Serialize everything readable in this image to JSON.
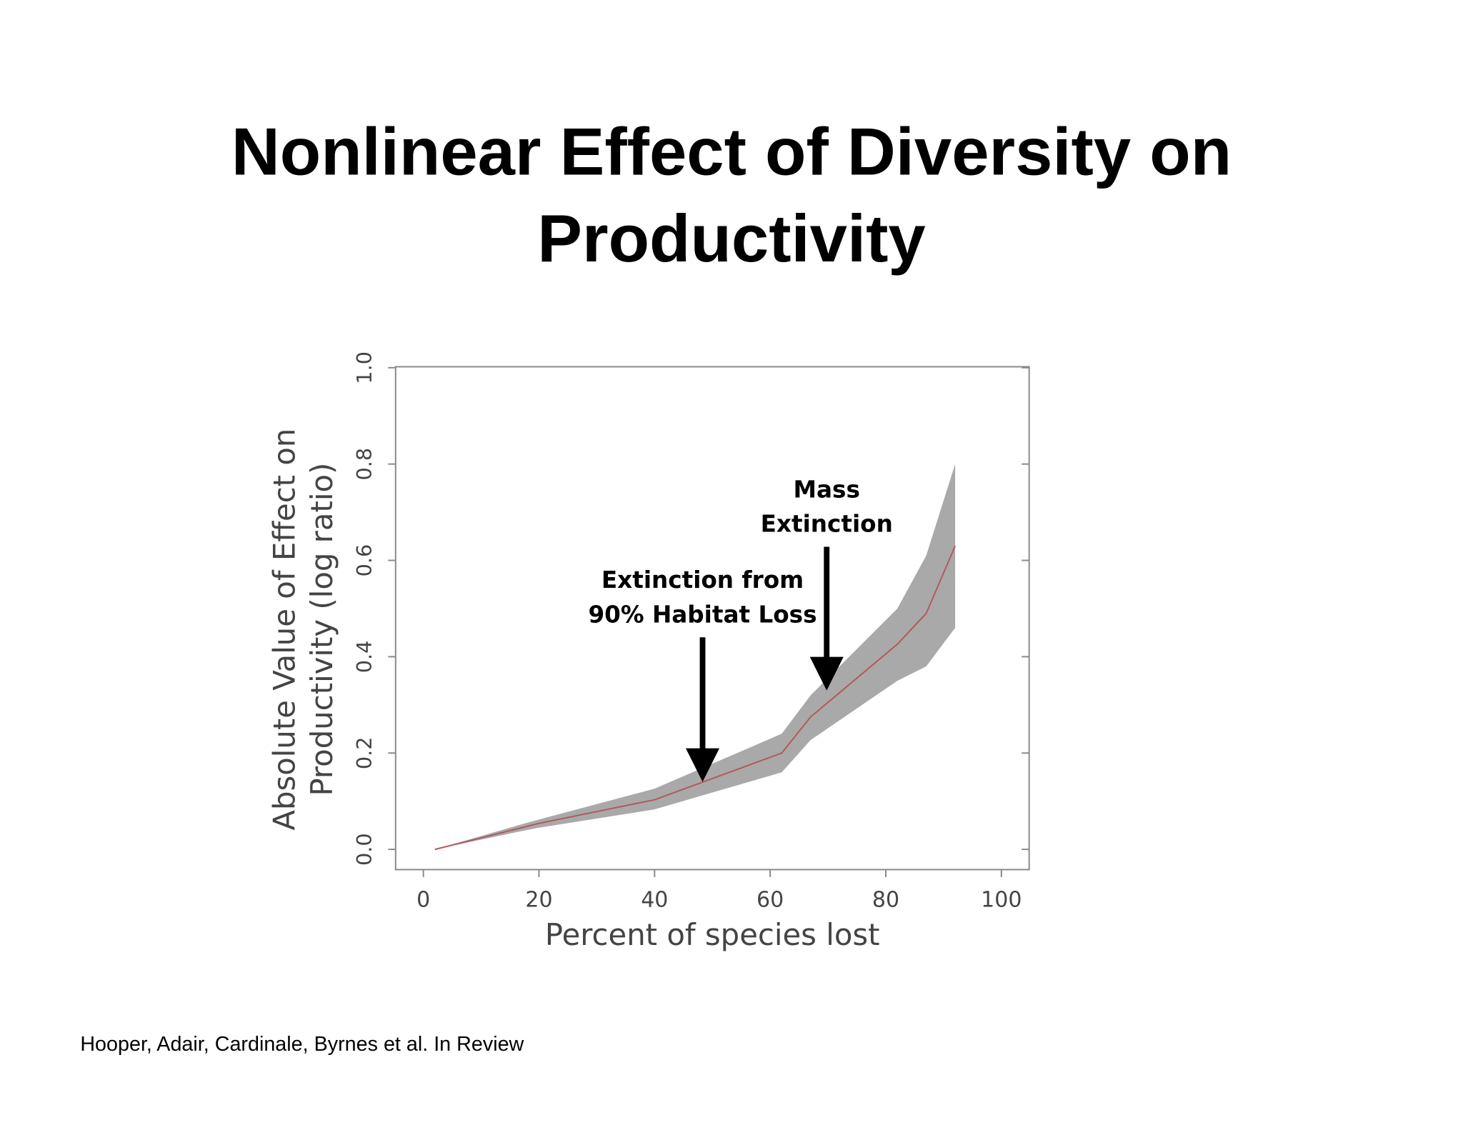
{
  "title": [
    "Nonlinear Effect of Diversity on",
    "Productivity"
  ],
  "chart_data": {
    "type": "line",
    "xlabel": "Percent of species lost",
    "ylabel": [
      "Absolute Value of Effect on",
      "Productivity (log ratio)"
    ],
    "x": [
      2,
      17,
      20,
      40,
      62,
      67,
      82,
      87,
      92
    ],
    "values": [
      0,
      0.045,
      0.054,
      0.103,
      0.2,
      0.275,
      0.426,
      0.49,
      0.63
    ],
    "color": "#b05a5a",
    "band": {
      "lower": [
        0,
        0.038,
        0.045,
        0.083,
        0.16,
        0.227,
        0.35,
        0.38,
        0.46
      ],
      "upper": [
        0,
        0.052,
        0.062,
        0.126,
        0.24,
        0.32,
        0.5,
        0.61,
        0.8
      ],
      "color": "#a9a9a9"
    },
    "xlim": [
      -4.8,
      104.8
    ],
    "ylim": [
      -0.042,
      1.002
    ],
    "xticks": [
      0,
      20,
      40,
      60,
      80,
      100
    ],
    "yticks": [
      {
        "value": 0,
        "label": "0.0"
      },
      0.2,
      0.4,
      0.6,
      0.8,
      {
        "value": 1,
        "label": "1.0"
      }
    ],
    "annotations": [
      [
        "Extinction from",
        "90% Habitat Loss"
      ],
      [
        "Mass",
        "Extinction"
      ]
    ]
  },
  "footer": "Hooper, Adair, Cardinale, Byrnes et al. In Review"
}
